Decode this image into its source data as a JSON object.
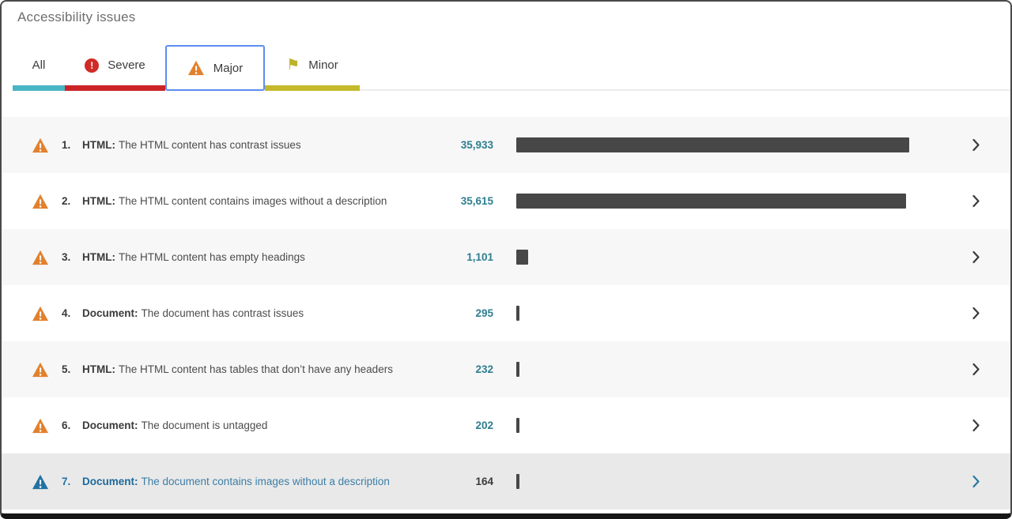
{
  "page": {
    "title": "Accessibility issues"
  },
  "tabs": [
    {
      "id": "all",
      "label": "All",
      "icon": null,
      "underline_color": "#4ab5c4",
      "selected": false
    },
    {
      "id": "severe",
      "label": "Severe",
      "icon": "exclamation-circle",
      "icon_color": "#d02b27",
      "underline_color": "#cc2326",
      "selected": false
    },
    {
      "id": "major",
      "label": "Major",
      "icon": "warning-triangle",
      "icon_color": "#e2812d",
      "selected": true,
      "selection_border": "#5c8df2"
    },
    {
      "id": "minor",
      "label": "Minor",
      "icon": "flag",
      "icon_color": "#bdb32b",
      "underline_color": "#c4b92c",
      "selected": false
    }
  ],
  "issues": [
    {
      "rank": "1.",
      "icon": "warning-triangle",
      "category": "HTML:",
      "description": "The HTML content has contrast issues",
      "count": "35,933",
      "value": 35933,
      "highlighted": false
    },
    {
      "rank": "2.",
      "icon": "warning-triangle",
      "category": "HTML:",
      "description": "The HTML content contains images without a description",
      "count": "35,615",
      "value": 35615,
      "highlighted": false
    },
    {
      "rank": "3.",
      "icon": "warning-triangle",
      "category": "HTML:",
      "description": "The HTML content has empty headings",
      "count": "1,101",
      "value": 1101,
      "highlighted": false
    },
    {
      "rank": "4.",
      "icon": "warning-triangle",
      "category": "Document:",
      "description": "The document has contrast issues",
      "count": "295",
      "value": 295,
      "highlighted": false
    },
    {
      "rank": "5.",
      "icon": "warning-triangle",
      "category": "HTML:",
      "description": "The HTML content has tables that don’t have any headers",
      "count": "232",
      "value": 232,
      "highlighted": false
    },
    {
      "rank": "6.",
      "icon": "warning-triangle",
      "category": "Document:",
      "description": "The document is untagged",
      "count": "202",
      "value": 202,
      "highlighted": false
    },
    {
      "rank": "7.",
      "icon": "warning-triangle",
      "category": "Document:",
      "description": "The document contains images without a description",
      "count": "164",
      "value": 164,
      "highlighted": true
    }
  ],
  "icons": {
    "severe": "exclamation-circle",
    "major": "warning-triangle",
    "minor": "flag",
    "row_marker": "warning-triangle",
    "row_action": "chevron-right"
  },
  "colors": {
    "tab_all_underline": "#4ab5c4",
    "tab_severe_underline": "#cc2326",
    "tab_minor_underline": "#c4b92c",
    "selected_tab_border": "#5c8df2",
    "warning_orange": "#e2812d",
    "severe_red": "#d02b27",
    "minor_olive": "#bdb32b",
    "count_teal": "#2e7e8f",
    "bar_gray": "#474747",
    "row_alt_bg": "#f7f7f7",
    "active_row_bg": "#e9e9e9",
    "active_blue": "#2272a3"
  }
}
